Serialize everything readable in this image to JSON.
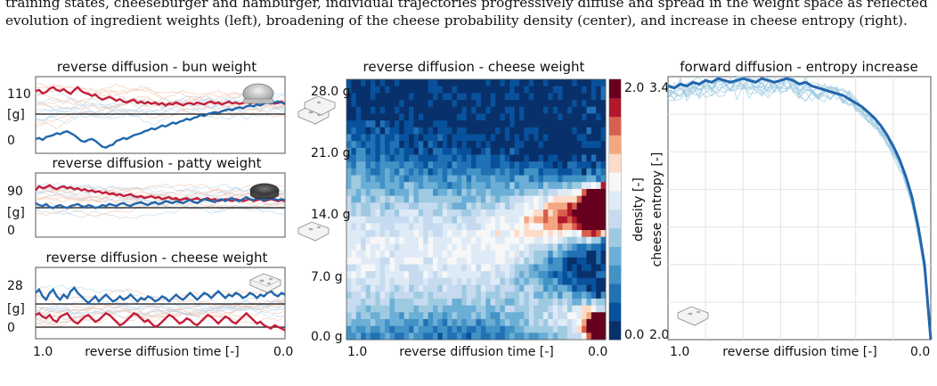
{
  "caption": {
    "line1": "training states, cheeseburger and hamburger, individual trajectories progressively diffuse and spread in the weight space as reflected by the",
    "line2": "evolution of ingredient weights (left), broadening of the cheese probability density (center), and increase in cheese entropy (right)."
  },
  "colors": {
    "cheeseburger": "#c41e3a",
    "hamburger": "#2166ac",
    "faint_red": "#f4c0a8",
    "faint_blue": "#b7d4ea",
    "entropy_line": "#2166ac",
    "entropy_faint": "#9ecae1"
  },
  "icons": {
    "bun": "bun-icon",
    "patty": "patty-icon",
    "cheese": "cheese-slice-icon"
  },
  "chart_data": [
    {
      "type": "line",
      "title": "reverse diffusion - bun weight",
      "ylabel_mid": "[g]",
      "yticks": [
        "110",
        "0"
      ],
      "ylim": [
        -20,
        140
      ],
      "hline": 80,
      "xlim": [
        1.0,
        0.0
      ],
      "series": [
        {
          "color": "red",
          "values": [
            110,
            112,
            105,
            108,
            115,
            118,
            112,
            110,
            114,
            108,
            104,
            112,
            118,
            110,
            106,
            104,
            100,
            103,
            96,
            92,
            95,
            98,
            94,
            90,
            93,
            88,
            86,
            90,
            92,
            85,
            88,
            84,
            87,
            83,
            86,
            82,
            85,
            80,
            84,
            82,
            86,
            83,
            80,
            84,
            85,
            82,
            86,
            84,
            82,
            86,
            88,
            84,
            86,
            82,
            85,
            88,
            84,
            86,
            83,
            85,
            88,
            84,
            86,
            90,
            86,
            84,
            88,
            86,
            84,
            85,
            88,
            82
          ]
        },
        {
          "color": "blue",
          "values": [
            10,
            12,
            8,
            14,
            16,
            18,
            22,
            20,
            24,
            26,
            22,
            18,
            12,
            6,
            4,
            8,
            10,
            6,
            0,
            -6,
            -8,
            -4,
            -2,
            6,
            8,
            12,
            10,
            14,
            18,
            20,
            22,
            26,
            28,
            32,
            30,
            34,
            38,
            36,
            40,
            44,
            42,
            46,
            48,
            52,
            50,
            54,
            56,
            60,
            58,
            62,
            64,
            66,
            64,
            68,
            70,
            72,
            70,
            74,
            76,
            74,
            78,
            80,
            78,
            82,
            80,
            84,
            86,
            84,
            86,
            88,
            86,
            84
          ]
        }
      ]
    },
    {
      "type": "line",
      "title": "reverse diffusion - patty weight",
      "ylabel_mid": "[g]",
      "yticks": [
        "90",
        "0"
      ],
      "ylim": [
        -15,
        115
      ],
      "hline": 60,
      "xlim": [
        1.0,
        0.0
      ],
      "series": [
        {
          "color": "red",
          "values": [
            80,
            88,
            84,
            86,
            90,
            85,
            82,
            86,
            88,
            84,
            86,
            82,
            84,
            80,
            82,
            78,
            80,
            76,
            78,
            74,
            76,
            72,
            74,
            70,
            72,
            68,
            70,
            72,
            68,
            66,
            68,
            64,
            66,
            68,
            64,
            66,
            62,
            64,
            66,
            62,
            64,
            60,
            62,
            64,
            60,
            62,
            64,
            60,
            62,
            64,
            60,
            62,
            58,
            60,
            62,
            60,
            58,
            62,
            60,
            58,
            60,
            62,
            58,
            60,
            62,
            58,
            60,
            62,
            60,
            58,
            60,
            58
          ]
        },
        {
          "color": "blue",
          "values": [
            54,
            50,
            48,
            52,
            46,
            44,
            48,
            50,
            46,
            44,
            48,
            50,
            52,
            48,
            46,
            50,
            48,
            44,
            46,
            50,
            48,
            52,
            50,
            48,
            52,
            54,
            50,
            48,
            52,
            54,
            56,
            52,
            50,
            54,
            56,
            52,
            54,
            58,
            56,
            54,
            58,
            56,
            54,
            58,
            60,
            56,
            54,
            58,
            62,
            60,
            58,
            56,
            60,
            62,
            58,
            62,
            64,
            60,
            58,
            62,
            66,
            62,
            60,
            64,
            62,
            60,
            62,
            64,
            62,
            60,
            62,
            60
          ]
        }
      ]
    },
    {
      "type": "line",
      "title": "reverse diffusion - cheese weight",
      "ylabel_mid": "[g]",
      "yticks": [
        "28",
        "0"
      ],
      "ylim": [
        -5,
        37
      ],
      "hline": 14,
      "hline2": 0,
      "xlim": [
        1.0,
        0.0
      ],
      "series": [
        {
          "color": "blue",
          "values": [
            22,
            24,
            20,
            18,
            22,
            24,
            20,
            18,
            21,
            19,
            23,
            25,
            22,
            20,
            18,
            16,
            18,
            20,
            17,
            19,
            21,
            19,
            17,
            18,
            20,
            18,
            19,
            21,
            19,
            17,
            19,
            18,
            20,
            19,
            17,
            18,
            20,
            19,
            17,
            19,
            21,
            19,
            18,
            20,
            22,
            20,
            18,
            20,
            22,
            21,
            19,
            21,
            23,
            21,
            19,
            21,
            20,
            22,
            21,
            19,
            20,
            22,
            21,
            19,
            21,
            20,
            22,
            23,
            21,
            20,
            22,
            21
          ]
        },
        {
          "color": "red",
          "values": [
            9,
            10,
            8,
            7,
            9,
            6,
            5,
            8,
            9,
            10,
            7,
            5,
            4,
            6,
            8,
            9,
            7,
            5,
            6,
            8,
            10,
            9,
            7,
            5,
            3,
            4,
            6,
            8,
            10,
            9,
            7,
            5,
            6,
            4,
            2,
            3,
            5,
            7,
            9,
            8,
            6,
            4,
            5,
            7,
            6,
            4,
            3,
            5,
            7,
            9,
            8,
            6,
            4,
            6,
            8,
            7,
            5,
            4,
            6,
            8,
            10,
            8,
            6,
            4,
            5,
            3,
            2,
            1,
            3,
            2,
            1,
            0
          ]
        }
      ]
    },
    {
      "type": "heatmap",
      "title": "reverse diffusion - cheese weight",
      "xlabel": "reverse diffusion time [-]",
      "xticks": [
        "1.0",
        "0.0"
      ],
      "yticks": [
        "28.0 g",
        "21.0 g",
        "14.0 g",
        "7.0 g",
        "0.0 g"
      ],
      "ylim": [
        0,
        28
      ],
      "colorbar_label": "density [-]",
      "colorbar_ticks": [
        "2.0",
        "0.0"
      ],
      "colormap": [
        "#08306b",
        "#08519c",
        "#2171b5",
        "#4292c6",
        "#6baed6",
        "#9ecae1",
        "#c6dbef",
        "#deebf7",
        "#f7f7f7",
        "#fddbc7",
        "#f4a582",
        "#d6604d",
        "#b2182b",
        "#67001f"
      ]
    },
    {
      "type": "line",
      "title": "forward diffusion - entropy increase",
      "ylabel": "cheese entropy [-]",
      "xlabel": "reverse diffusion time [-]",
      "xticks": [
        "1.0",
        "0.0"
      ],
      "yticks": [
        "3.4",
        "2.0"
      ],
      "ylim": [
        2.0,
        3.4
      ],
      "xlim": [
        1.0,
        0.0
      ],
      "series": [
        {
          "name": "",
          "values": [
            3.35,
            3.34,
            3.36,
            3.35,
            3.37,
            3.36,
            3.38,
            3.37,
            3.39,
            3.38,
            3.37,
            3.38,
            3.39,
            3.38,
            3.37,
            3.39,
            3.38,
            3.37,
            3.38,
            3.39,
            3.38,
            3.36,
            3.37,
            3.35,
            3.34,
            3.33,
            3.32,
            3.31,
            3.3,
            3.28,
            3.26,
            3.24,
            3.21,
            3.18,
            3.14,
            3.09,
            3.03,
            2.96,
            2.87,
            2.76,
            2.6,
            2.4,
            2.0
          ]
        }
      ]
    }
  ],
  "labels": {
    "xlabel_left": "reverse diffusion time [-]",
    "xtick_start": "1.0",
    "xtick_end": "0.0"
  }
}
